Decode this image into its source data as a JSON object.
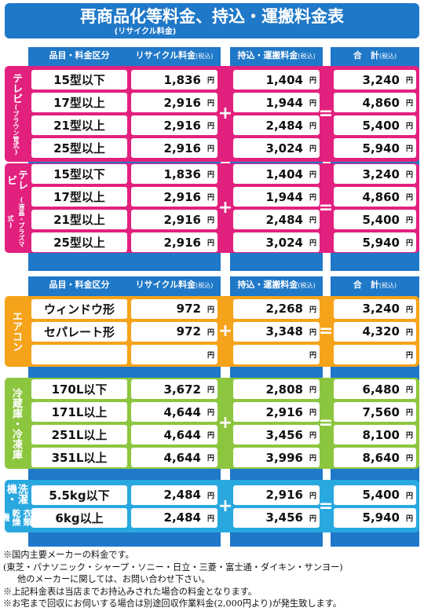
{
  "title": {
    "main": "再商品化等料金、持込・運搬料金表",
    "sub": "(リサイクル料金)"
  },
  "headers": {
    "item": "品目・料金区分",
    "recycle": "リサイクル料金",
    "recycle_tax": "(税込)",
    "transport": "持込・運搬料金",
    "transport_tax": "(税込)",
    "total": "合　計",
    "total_tax": "(税込)"
  },
  "operators": {
    "plus": "+",
    "equals": "="
  },
  "yen": "円",
  "sections": [
    {
      "label": "テレビ",
      "sublabel": "(ブラウン管式)",
      "color": "#e2217e",
      "rows": [
        {
          "item": "15型以下",
          "recycle": "1,836",
          "transport": "1,404",
          "total": "3,240"
        },
        {
          "item": "17型以上",
          "recycle": "2,916",
          "transport": "1,944",
          "total": "4,860"
        },
        {
          "item": "21型以上",
          "recycle": "2,916",
          "transport": "2,484",
          "total": "5,400"
        },
        {
          "item": "25型以上",
          "recycle": "2,916",
          "transport": "3,024",
          "total": "5,940"
        }
      ]
    },
    {
      "label": "テレビ",
      "sublabel": "(液晶・プラズマ式)",
      "color": "#e2217e",
      "rows": [
        {
          "item": "15型以下",
          "recycle": "1,836",
          "transport": "1,404",
          "total": "3,240"
        },
        {
          "item": "17型以上",
          "recycle": "2,916",
          "transport": "1,944",
          "total": "4,860"
        },
        {
          "item": "21型以上",
          "recycle": "2,916",
          "transport": "2,484",
          "total": "5,400"
        },
        {
          "item": "25型以上",
          "recycle": "2,916",
          "transport": "3,024",
          "total": "5,940"
        }
      ]
    },
    {
      "label": "エアコン",
      "sublabel": "",
      "color": "#f5a31a",
      "rows": [
        {
          "item": "ウィンドウ形",
          "recycle": "972",
          "transport": "2,268",
          "total": "3,240"
        },
        {
          "item": "セパレート形",
          "recycle": "972",
          "transport": "3,348",
          "total": "4,320"
        },
        {
          "item": "",
          "recycle": "",
          "transport": "",
          "total": ""
        }
      ]
    },
    {
      "label": "冷蔵庫・冷凍庫",
      "sublabel": "",
      "color": "#8cc63f",
      "rows": [
        {
          "item": "170L以下",
          "recycle": "3,672",
          "transport": "2,808",
          "total": "6,480"
        },
        {
          "item": "171L以上",
          "recycle": "4,644",
          "transport": "2,916",
          "total": "7,560"
        },
        {
          "item": "251L以上",
          "recycle": "4,644",
          "transport": "3,456",
          "total": "8,100"
        },
        {
          "item": "351L以上",
          "recycle": "4,644",
          "transport": "3,996",
          "total": "8,640"
        }
      ]
    },
    {
      "label": "洗濯機・",
      "sublabel": "衣類乾燥機",
      "color": "#29a8e0",
      "rows": [
        {
          "item": "5.5kg以下",
          "recycle": "2,484",
          "transport": "2,916",
          "total": "5,400"
        },
        {
          "item": "6kg以上",
          "recycle": "2,484",
          "transport": "3,456",
          "total": "5,940"
        }
      ]
    }
  ],
  "notes": [
    "※国内主要メーカーの料金です。",
    "(東芝・パナソニック・シャープ・ソニー・日立・三菱・富士通・ダイキン・サンヨー)",
    "他のメーカーに関しては、お問い合わせ下さい。",
    "※上記料金表は当店までお持込みされた場合の料金となります。",
    "※お宅まで回収にお伺いする場合は別途回収作業料金(2,000円より)が発生致します。"
  ]
}
